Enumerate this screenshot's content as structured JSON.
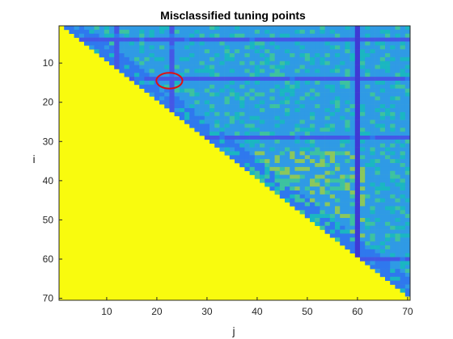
{
  "chart_data": {
    "type": "heatmap",
    "title": "Misclassified tuning points",
    "xlabel": "j",
    "ylabel": "i",
    "xlim": [
      0.5,
      70.5
    ],
    "ylim": [
      0.5,
      70.5
    ],
    "y_reversed": true,
    "xticks": [
      10,
      20,
      30,
      40,
      50,
      60,
      70
    ],
    "yticks": [
      10,
      20,
      30,
      40,
      50,
      60,
      70
    ],
    "grid_size": 70,
    "lower_triangle_fill": "#f9fb0e",
    "upper_triangle_base": "#2f9ae5",
    "colormap": [
      "#3e3ad4",
      "#4457e6",
      "#2f78ee",
      "#2f9ae5",
      "#1ab6c2",
      "#3dc2a0",
      "#8bc75d",
      "#c8bf3a",
      "#f9fb0e"
    ],
    "low_columns": [
      12,
      23,
      60
    ],
    "low_rows": [
      4,
      14,
      29,
      60
    ],
    "darkest_column": 60,
    "annotation": {
      "type": "circle",
      "color": "#e01010",
      "center_j": 22.5,
      "center_i": 14.5
    }
  }
}
